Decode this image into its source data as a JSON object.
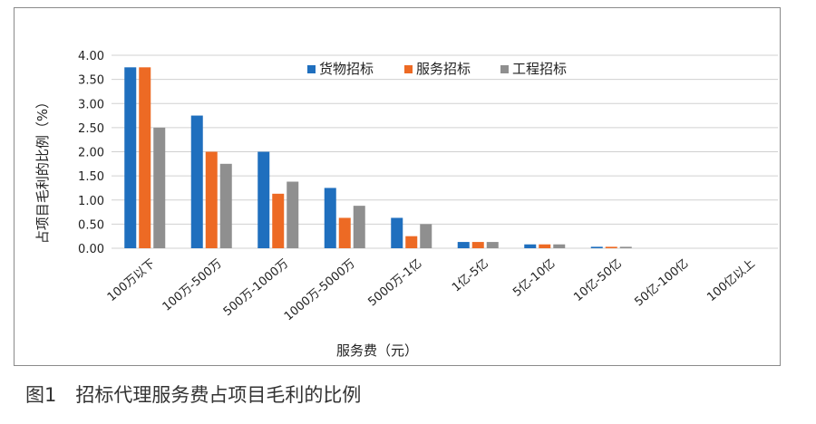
{
  "caption": "图1　招标代理服务费占项目毛利的比例",
  "chart_data": {
    "type": "bar",
    "xlabel": "服务费（元）",
    "ylabel": "占项目毛利的比例（%）",
    "ylim": [
      0,
      4
    ],
    "yticks": [
      "0.00",
      "0.50",
      "1.00",
      "1.50",
      "2.00",
      "2.50",
      "3.00",
      "3.50",
      "4.00"
    ],
    "grid": true,
    "legend_position": "top",
    "categories": [
      "100万以下",
      "100万-500万",
      "500万-1000万",
      "1000万-5000万",
      "5000万-1亿",
      "1亿-5亿",
      "5亿-10亿",
      "10亿-50亿",
      "50亿-100亿",
      "100亿以上"
    ],
    "series": [
      {
        "name": "货物招标",
        "color": "#1f6fbe",
        "values": [
          3.75,
          2.75,
          2.0,
          1.25,
          0.63,
          0.13,
          0.08,
          0.03,
          0.0,
          0.0
        ]
      },
      {
        "name": "服务招标",
        "color": "#ed6a24",
        "values": [
          3.75,
          2.0,
          1.13,
          0.63,
          0.25,
          0.13,
          0.08,
          0.03,
          0.0,
          0.0
        ]
      },
      {
        "name": "工程招标",
        "color": "#8f8f8f",
        "values": [
          2.5,
          1.75,
          1.38,
          0.88,
          0.5,
          0.13,
          0.08,
          0.03,
          0.0,
          0.0
        ]
      }
    ]
  }
}
